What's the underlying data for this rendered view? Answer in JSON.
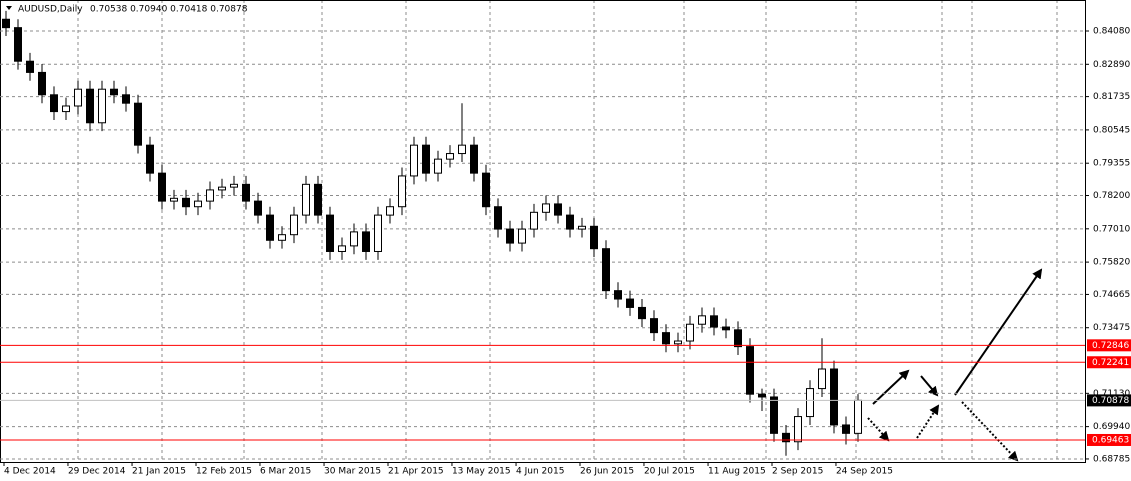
{
  "chart_data": {
    "type": "candlestick",
    "title": "AUDUSD,Daily",
    "quote": "0.70538 0.70940 0.70418 0.70878",
    "ylim": [
      0.68676,
      0.85188
    ],
    "yticks": [
      {
        "value": 0.8408,
        "label": "0.84080"
      },
      {
        "value": 0.8289,
        "label": "0.82890"
      },
      0.81735,
      0.80545,
      0.79355,
      {
        "value": 0.782,
        "label": "0.78200"
      },
      {
        "value": 0.7701,
        "label": "0.77010"
      },
      {
        "value": 0.7582,
        "label": "0.75820"
      },
      0.74665,
      0.73475,
      {
        "value": 0.7113,
        "label": "0.71130"
      },
      {
        "value": 0.6994,
        "label": "0.69940"
      },
      0.68785
    ],
    "xticks": [
      {
        "value": 0,
        "label": "4 Dec 2014"
      },
      {
        "value": 5.33,
        "label": "29 Dec 2014"
      },
      {
        "value": 10.67,
        "label": "21 Jan 2015"
      },
      {
        "value": 16,
        "label": "12 Feb 2015"
      },
      {
        "value": 21.33,
        "label": "6 Mar 2015"
      },
      {
        "value": 26.67,
        "label": "30 Mar 2015"
      },
      {
        "value": 32,
        "label": "21 Apr 2015"
      },
      {
        "value": 37.33,
        "label": "13 May 2015"
      },
      {
        "value": 42.67,
        "label": "4 Jun 2015"
      },
      {
        "value": 48,
        "label": "26 Jun 2015"
      },
      {
        "value": 53.33,
        "label": "20 Jul 2015"
      },
      {
        "value": 58.67,
        "label": "11 Aug 2015"
      },
      {
        "value": 64,
        "label": "2 Sep 2015"
      },
      {
        "value": 69.33,
        "label": "24 Sep 2015"
      }
    ],
    "levels": [
      0.72846,
      0.72241,
      0.69463
    ],
    "level_color": "#ff0000",
    "last_price": 0.70878,
    "grid": true,
    "open": [
      0.845,
      0.842,
      0.83,
      0.826,
      0.818,
      0.812,
      0.814,
      0.82,
      0.808,
      0.82,
      0.818,
      0.815,
      0.8,
      0.79,
      0.78,
      0.781,
      0.778,
      0.78,
      0.784,
      0.785,
      0.786,
      0.78,
      0.775,
      0.766,
      0.768,
      0.775,
      0.786,
      0.775,
      0.762,
      0.764,
      0.769,
      0.762,
      0.775,
      0.778,
      0.789,
      0.8,
      0.79,
      0.795,
      0.797,
      0.8,
      0.79,
      0.778,
      0.77,
      0.765,
      0.77,
      0.776,
      0.779,
      0.775,
      0.77,
      0.771,
      0.763,
      0.748,
      0.745,
      0.742,
      0.738,
      0.733,
      0.729,
      0.73,
      0.736,
      0.739,
      0.735,
      0.734,
      0.728,
      0.711,
      0.71,
      0.697,
      0.694,
      0.703,
      0.713,
      0.72,
      0.7,
      0.697
    ],
    "high": [
      0.848,
      0.845,
      0.833,
      0.829,
      0.821,
      0.817,
      0.823,
      0.823,
      0.823,
      0.823,
      0.821,
      0.818,
      0.803,
      0.793,
      0.784,
      0.784,
      0.783,
      0.787,
      0.788,
      0.789,
      0.789,
      0.783,
      0.778,
      0.771,
      0.778,
      0.789,
      0.789,
      0.778,
      0.767,
      0.772,
      0.772,
      0.778,
      0.781,
      0.792,
      0.803,
      0.803,
      0.798,
      0.8,
      0.815,
      0.803,
      0.793,
      0.781,
      0.773,
      0.773,
      0.779,
      0.782,
      0.782,
      0.778,
      0.774,
      0.774,
      0.766,
      0.751,
      0.748,
      0.745,
      0.741,
      0.736,
      0.733,
      0.739,
      0.742,
      0.742,
      0.738,
      0.737,
      0.731,
      0.713,
      0.713,
      0.7,
      0.706,
      0.716,
      0.731,
      0.723,
      0.703,
      0.711
    ],
    "low": [
      0.839,
      0.827,
      0.823,
      0.815,
      0.809,
      0.809,
      0.811,
      0.805,
      0.805,
      0.815,
      0.812,
      0.797,
      0.787,
      0.777,
      0.777,
      0.775,
      0.775,
      0.777,
      0.781,
      0.782,
      0.777,
      0.772,
      0.763,
      0.763,
      0.765,
      0.772,
      0.772,
      0.759,
      0.759,
      0.761,
      0.759,
      0.759,
      0.772,
      0.775,
      0.786,
      0.787,
      0.787,
      0.792,
      0.794,
      0.787,
      0.775,
      0.767,
      0.762,
      0.762,
      0.767,
      0.773,
      0.772,
      0.767,
      0.767,
      0.76,
      0.745,
      0.742,
      0.739,
      0.735,
      0.73,
      0.726,
      0.726,
      0.727,
      0.733,
      0.732,
      0.731,
      0.725,
      0.708,
      0.705,
      0.694,
      0.689,
      0.691,
      0.7,
      0.71,
      0.697,
      0.693,
      0.694
    ],
    "close": [
      0.842,
      0.83,
      0.826,
      0.818,
      0.812,
      0.814,
      0.82,
      0.808,
      0.82,
      0.818,
      0.815,
      0.8,
      0.79,
      0.78,
      0.781,
      0.778,
      0.78,
      0.784,
      0.785,
      0.786,
      0.78,
      0.775,
      0.766,
      0.768,
      0.775,
      0.786,
      0.775,
      0.762,
      0.764,
      0.769,
      0.762,
      0.775,
      0.778,
      0.789,
      0.8,
      0.79,
      0.795,
      0.797,
      0.8,
      0.79,
      0.778,
      0.77,
      0.765,
      0.77,
      0.776,
      0.779,
      0.775,
      0.77,
      0.771,
      0.763,
      0.748,
      0.745,
      0.742,
      0.738,
      0.733,
      0.729,
      0.73,
      0.736,
      0.739,
      0.735,
      0.734,
      0.728,
      0.711,
      0.71,
      0.697,
      0.694,
      0.703,
      0.713,
      0.72,
      0.7,
      0.697,
      0.7088
    ]
  }
}
